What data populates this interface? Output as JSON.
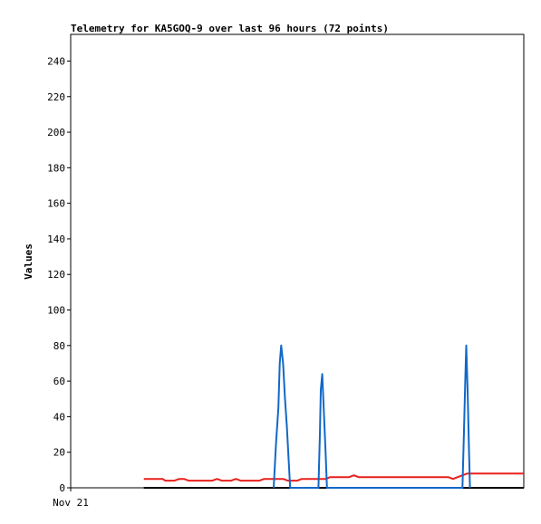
{
  "chart_data": {
    "type": "line",
    "title": "Telemetry for KA5GOQ-9 over last 96 hours (72 points)",
    "xlabel": "",
    "ylabel": "Values",
    "xlim": [
      0,
      96
    ],
    "ylim": [
      0,
      255
    ],
    "yticks": [
      0,
      20,
      40,
      60,
      80,
      100,
      120,
      140,
      160,
      180,
      200,
      220,
      240
    ],
    "xtick_labels": [
      {
        "x": 0,
        "label": "Nov 21"
      }
    ],
    "grid": false,
    "legend": "none",
    "series": [
      {
        "color": "#000000",
        "values": [
          [
            15.5,
            0
          ],
          [
            96,
            0
          ]
        ]
      },
      {
        "color": "#e8201c",
        "values": [
          [
            15.5,
            5
          ],
          [
            19.5,
            5
          ],
          [
            20,
            4
          ],
          [
            22,
            4
          ],
          [
            23,
            5
          ],
          [
            24,
            5
          ],
          [
            25,
            4
          ],
          [
            30,
            4
          ],
          [
            31,
            5
          ],
          [
            32,
            4
          ],
          [
            34,
            4
          ],
          [
            35,
            5
          ],
          [
            36,
            4
          ],
          [
            40,
            4
          ],
          [
            41,
            5
          ],
          [
            45,
            5
          ],
          [
            46,
            4
          ],
          [
            48,
            4
          ],
          [
            49,
            5
          ],
          [
            54,
            5
          ],
          [
            55,
            6
          ],
          [
            59,
            6
          ],
          [
            60,
            7
          ],
          [
            61,
            6
          ],
          [
            74,
            6
          ],
          [
            80,
            6
          ],
          [
            81,
            5
          ],
          [
            82,
            6
          ],
          [
            83,
            7
          ],
          [
            84,
            8
          ],
          [
            96,
            8
          ]
        ]
      },
      {
        "color": "#1168c8",
        "values": [
          [
            43,
            0
          ],
          [
            43.5,
            25
          ],
          [
            44,
            45
          ],
          [
            44.3,
            70
          ],
          [
            44.6,
            80
          ],
          [
            45,
            70
          ],
          [
            45.4,
            50
          ],
          [
            45.8,
            35
          ],
          [
            46.2,
            15
          ],
          [
            46.5,
            0
          ],
          [
            52.5,
            0
          ],
          [
            52.8,
            30
          ],
          [
            53,
            55
          ],
          [
            53.3,
            64
          ],
          [
            53.6,
            45
          ],
          [
            54,
            20
          ],
          [
            54.3,
            0
          ],
          [
            83,
            0
          ],
          [
            83.3,
            30
          ],
          [
            83.6,
            60
          ],
          [
            83.8,
            80
          ],
          [
            84.1,
            55
          ],
          [
            84.4,
            20
          ],
          [
            84.6,
            0
          ]
        ]
      }
    ]
  }
}
